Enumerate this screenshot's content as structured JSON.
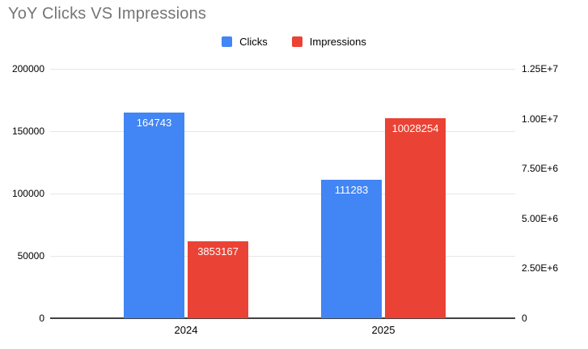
{
  "title": "YoY Clicks VS Impressions",
  "legend": {
    "items": [
      {
        "label": "Clicks",
        "color": "#4285F4"
      },
      {
        "label": "Impressions",
        "color": "#EA4335"
      }
    ]
  },
  "chart_data": {
    "type": "bar",
    "title": "YoY Clicks VS Impressions",
    "categories": [
      "2024",
      "2025"
    ],
    "series": [
      {
        "name": "Clicks",
        "axis": "left",
        "color": "#4285F4",
        "values": [
          164743,
          111283
        ],
        "labels": [
          "164743",
          "111283"
        ]
      },
      {
        "name": "Impressions",
        "axis": "right",
        "color": "#EA4335",
        "values": [
          3853167,
          10028254
        ],
        "labels": [
          "3853167",
          "10028254"
        ]
      }
    ],
    "left_axis": {
      "min": 0,
      "max": 200000,
      "tick_values": [
        0,
        50000,
        100000,
        150000,
        200000
      ],
      "tick_labels": [
        "0",
        "50000",
        "100000",
        "150000",
        "200000"
      ]
    },
    "right_axis": {
      "min": 0,
      "max": 12500000,
      "tick_values": [
        0,
        2500000,
        5000000,
        7500000,
        10000000,
        12500000
      ],
      "tick_labels": [
        "0",
        "2.50E+6",
        "5.00E+6",
        "7.50E+6",
        "1.00E+7",
        "1.25E+7"
      ]
    },
    "grid": true,
    "legend_position": "top",
    "colors": {
      "title_text": "#757575",
      "axis_text": "#000000",
      "gridline": "#e6e6e6",
      "baseline": "#424242",
      "bar_label_text": "#ffffff",
      "background": "#ffffff"
    }
  }
}
